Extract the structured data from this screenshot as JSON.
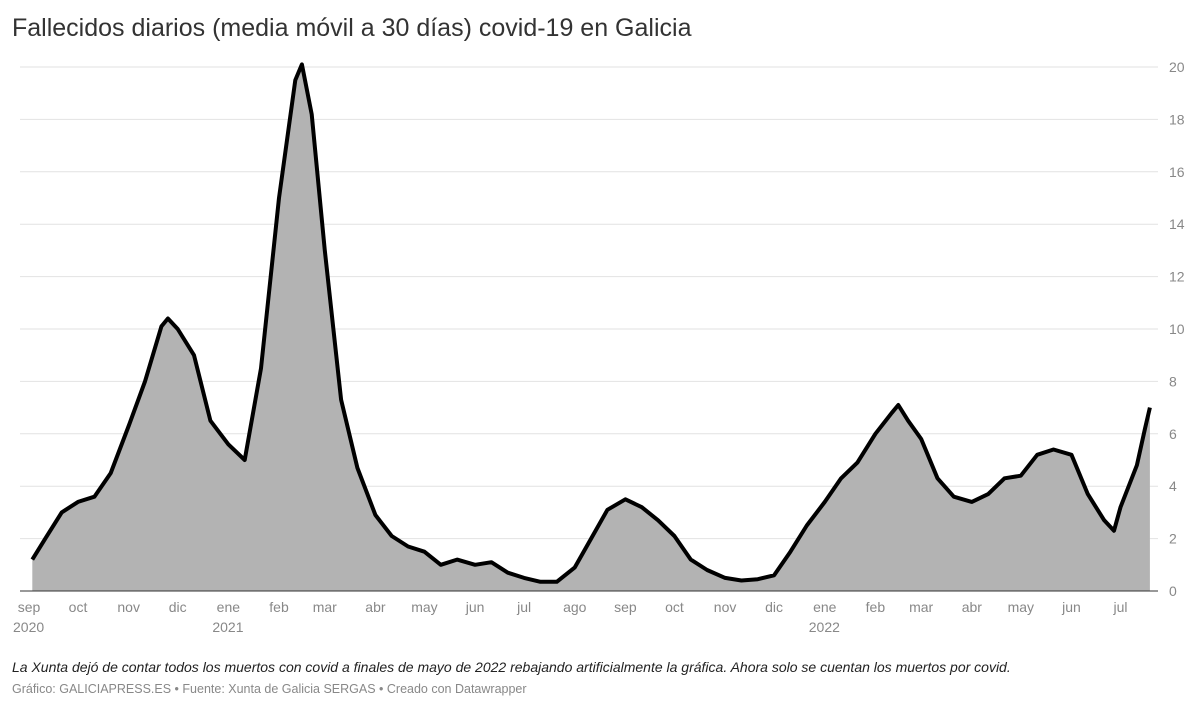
{
  "title": "Fallecidos diarios (media móvil a 30 días) covid-19 en Galicia",
  "note": "La Xunta dejó de contar todos los muertos con covid a finales de mayo de 2022 rebajando artificialmente la gráfica. Ahora solo se cuentan los muertos por covid.",
  "source": "Gráfico: GALICIAPRESS.ES • Fuente: Xunta de Galicia SERGAS • Creado con Datawrapper",
  "chart_data": {
    "type": "area",
    "title": "Fallecidos diarios (media móvil a 30 días) covid-19 en Galicia",
    "xlabel": "",
    "ylabel": "",
    "ylim": [
      0,
      20
    ],
    "yticks": [
      0,
      2,
      4,
      6,
      8,
      10,
      12,
      14,
      16,
      18,
      20
    ],
    "y_axis_position": "right",
    "grid": true,
    "line_color": "#000000",
    "fill_color": "#b3b3b3",
    "xticks": [
      {
        "date": "2020-09-01",
        "label": "sep",
        "year": "2020"
      },
      {
        "date": "2020-10-01",
        "label": "oct"
      },
      {
        "date": "2020-11-01",
        "label": "nov"
      },
      {
        "date": "2020-12-01",
        "label": "dic"
      },
      {
        "date": "2021-01-01",
        "label": "ene",
        "year": "2021"
      },
      {
        "date": "2021-02-01",
        "label": "feb"
      },
      {
        "date": "2021-03-01",
        "label": "mar"
      },
      {
        "date": "2021-04-01",
        "label": "abr"
      },
      {
        "date": "2021-05-01",
        "label": "may"
      },
      {
        "date": "2021-06-01",
        "label": "jun"
      },
      {
        "date": "2021-07-01",
        "label": "jul"
      },
      {
        "date": "2021-08-01",
        "label": "ago"
      },
      {
        "date": "2021-09-01",
        "label": "sep"
      },
      {
        "date": "2021-10-01",
        "label": "oct"
      },
      {
        "date": "2021-11-01",
        "label": "nov"
      },
      {
        "date": "2021-12-01",
        "label": "dic"
      },
      {
        "date": "2022-01-01",
        "label": "ene",
        "year": "2022"
      },
      {
        "date": "2022-02-01",
        "label": "feb"
      },
      {
        "date": "2022-03-01",
        "label": "mar"
      },
      {
        "date": "2022-04-01",
        "label": "abr"
      },
      {
        "date": "2022-05-01",
        "label": "may"
      },
      {
        "date": "2022-06-01",
        "label": "jun"
      },
      {
        "date": "2022-07-01",
        "label": "jul"
      }
    ],
    "x": [
      "2020-09-03",
      "2020-09-11",
      "2020-09-21",
      "2020-10-01",
      "2020-10-11",
      "2020-10-21",
      "2020-11-01",
      "2020-11-11",
      "2020-11-21",
      "2020-11-25",
      "2020-12-01",
      "2020-12-11",
      "2020-12-21",
      "2021-01-01",
      "2021-01-11",
      "2021-01-21",
      "2021-02-01",
      "2021-02-11",
      "2021-02-15",
      "2021-02-21",
      "2021-03-01",
      "2021-03-11",
      "2021-03-21",
      "2021-04-01",
      "2021-04-11",
      "2021-04-21",
      "2021-05-01",
      "2021-05-11",
      "2021-05-21",
      "2021-06-01",
      "2021-06-11",
      "2021-06-21",
      "2021-07-01",
      "2021-07-11",
      "2021-07-21",
      "2021-08-01",
      "2021-08-11",
      "2021-08-21",
      "2021-09-01",
      "2021-09-11",
      "2021-09-21",
      "2021-10-01",
      "2021-10-11",
      "2021-10-21",
      "2021-11-01",
      "2021-11-11",
      "2021-11-21",
      "2021-12-01",
      "2021-12-11",
      "2021-12-21",
      "2022-01-01",
      "2022-01-11",
      "2022-01-21",
      "2022-02-01",
      "2022-02-11",
      "2022-02-15",
      "2022-02-21",
      "2022-03-01",
      "2022-03-11",
      "2022-03-21",
      "2022-04-01",
      "2022-04-11",
      "2022-04-21",
      "2022-05-01",
      "2022-05-11",
      "2022-05-21",
      "2022-06-01",
      "2022-06-11",
      "2022-06-21",
      "2022-06-27",
      "2022-07-01",
      "2022-07-11",
      "2022-07-16",
      "2022-07-19"
    ],
    "values": [
      1.2,
      2.0,
      3.0,
      3.4,
      3.6,
      4.5,
      6.3,
      8.0,
      10.1,
      10.4,
      10.0,
      9.0,
      6.5,
      5.6,
      5.0,
      8.5,
      15.0,
      19.5,
      20.1,
      18.2,
      13.0,
      7.3,
      4.7,
      2.9,
      2.1,
      1.7,
      1.5,
      1.0,
      1.2,
      1.0,
      1.1,
      0.7,
      0.5,
      0.35,
      0.35,
      0.9,
      2.0,
      3.1,
      3.5,
      3.2,
      2.7,
      2.1,
      1.2,
      0.8,
      0.5,
      0.4,
      0.45,
      0.6,
      1.5,
      2.5,
      3.4,
      4.3,
      4.9,
      6.0,
      6.8,
      7.1,
      6.5,
      5.8,
      4.3,
      3.6,
      3.4,
      3.7,
      4.3,
      4.4,
      5.2,
      5.4,
      5.2,
      3.7,
      2.7,
      2.3,
      3.2,
      4.8,
      6.2,
      7.0
    ]
  }
}
